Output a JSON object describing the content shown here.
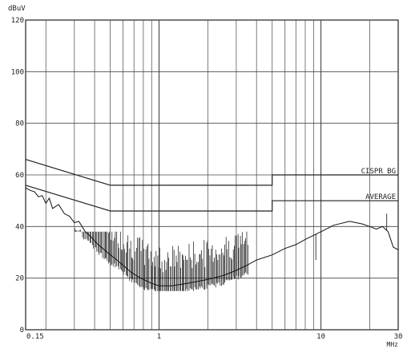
{
  "chart_data": {
    "type": "line",
    "title": "",
    "ylabel": "dBuV",
    "xlabel": "MHz",
    "x_scale": "log",
    "xlim": [
      0.15,
      30
    ],
    "ylim": [
      0,
      120
    ],
    "grid": true,
    "x_tick_labels": [
      {
        "value": 0.15,
        "label": "0.15"
      },
      {
        "value": 1,
        "label": "1"
      },
      {
        "value": 10,
        "label": "10"
      },
      {
        "value": 30,
        "label": "30"
      }
    ],
    "y_tick_labels": [
      {
        "value": 0,
        "label": "0"
      },
      {
        "value": 20,
        "label": "20"
      },
      {
        "value": 40,
        "label": "40"
      },
      {
        "value": 60,
        "label": "60"
      },
      {
        "value": 80,
        "label": "80"
      },
      {
        "value": 100,
        "label": "100"
      },
      {
        "value": 120,
        "label": "120"
      }
    ],
    "limit_lines": [
      {
        "name": "CISPR_BG",
        "points": [
          [
            0.15,
            66
          ],
          [
            0.5,
            56
          ],
          [
            5,
            56
          ],
          [
            5,
            60
          ],
          [
            30,
            60
          ]
        ]
      },
      {
        "name": "AVERAGE",
        "points": [
          [
            0.15,
            56
          ],
          [
            0.5,
            46
          ],
          [
            5,
            46
          ],
          [
            5,
            50
          ],
          [
            30,
            50
          ]
        ]
      }
    ],
    "series": [
      {
        "values": [
          [
            0.15,
            55
          ],
          [
            0.16,
            54
          ],
          [
            0.17,
            53.5
          ],
          [
            0.18,
            51.5
          ],
          [
            0.19,
            52
          ],
          [
            0.2,
            49
          ],
          [
            0.21,
            51
          ],
          [
            0.22,
            47
          ],
          [
            0.24,
            48.5
          ],
          [
            0.26,
            45
          ],
          [
            0.28,
            44
          ],
          [
            0.3,
            41.5
          ],
          [
            0.32,
            42
          ],
          [
            0.35,
            38
          ],
          [
            0.38,
            36
          ],
          [
            0.42,
            33
          ],
          [
            0.46,
            31
          ],
          [
            0.5,
            29
          ],
          [
            0.55,
            27
          ],
          [
            0.6,
            25
          ],
          [
            0.65,
            23
          ],
          [
            0.7,
            21.5
          ],
          [
            0.8,
            19.5
          ],
          [
            0.9,
            18
          ],
          [
            1.0,
            17
          ],
          [
            1.2,
            17
          ],
          [
            1.5,
            18
          ],
          [
            2.0,
            19.5
          ],
          [
            2.5,
            21
          ],
          [
            3.0,
            23
          ],
          [
            3.5,
            25
          ],
          [
            4.0,
            27
          ],
          [
            5.0,
            29
          ],
          [
            6.0,
            31.5
          ],
          [
            7.0,
            33
          ],
          [
            8.0,
            35
          ],
          [
            10.0,
            38
          ],
          [
            12.0,
            40.5
          ],
          [
            15.0,
            42
          ],
          [
            18.0,
            41
          ],
          [
            20.0,
            40
          ],
          [
            22.0,
            39
          ],
          [
            24.0,
            40
          ],
          [
            25.0,
            39
          ],
          [
            26.0,
            38
          ],
          [
            28.0,
            32
          ],
          [
            30.0,
            31
          ]
        ]
      }
    ]
  }
}
